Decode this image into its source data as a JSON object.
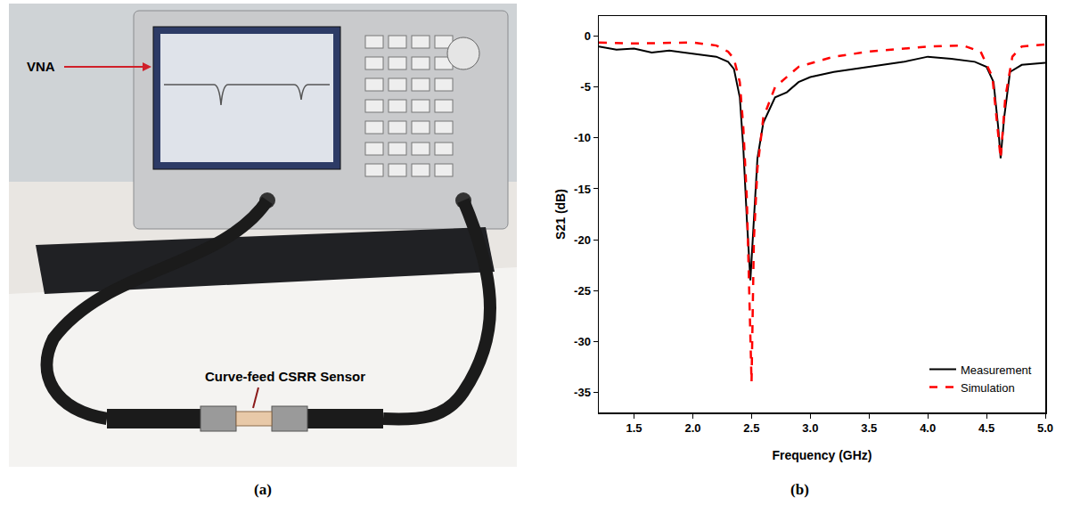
{
  "photo": {
    "labels": [
      "VNA",
      "Curve-feed CSRR Sensor"
    ],
    "caption": "(a)"
  },
  "chart_data": {
    "type": "line",
    "caption": "(b)",
    "x_label": "Frequency (GHz)",
    "y_label": "S21 (dB)",
    "xlim": [
      1.2,
      5.0
    ],
    "xticks": [
      1.5,
      {
        "value": 2.0,
        "label": "2.0"
      },
      2.5,
      {
        "value": 3.0,
        "label": "3.0"
      },
      3.5,
      {
        "value": 4.0,
        "label": "4.0"
      },
      4.5,
      {
        "value": 5.0,
        "label": "5.0"
      }
    ],
    "ylim": [
      -37,
      2
    ],
    "yticks": [
      -35,
      -30,
      -25,
      -20,
      -15,
      -10,
      -5,
      0
    ],
    "grid": false,
    "legend": "lower right",
    "series": [
      {
        "name": "Measurement",
        "color": "#000000",
        "line_style": "solid",
        "x": [
          1.2,
          1.35,
          1.5,
          1.65,
          1.8,
          2.0,
          2.2,
          2.3,
          2.35,
          2.4,
          2.43,
          2.46,
          2.49,
          2.52,
          2.55,
          2.6,
          2.7,
          2.8,
          2.9,
          3.0,
          3.2,
          3.5,
          3.8,
          4.0,
          4.2,
          4.4,
          4.5,
          4.56,
          4.6,
          4.62,
          4.65,
          4.7,
          4.8,
          5.0
        ],
        "values": [
          -1.0,
          -1.3,
          -1.2,
          -1.6,
          -1.4,
          -1.7,
          -2.0,
          -2.5,
          -3.2,
          -6.0,
          -11.0,
          -18.0,
          -24.0,
          -18.0,
          -12.0,
          -8.5,
          -6.0,
          -5.5,
          -4.5,
          -4.0,
          -3.5,
          -3.0,
          -2.5,
          -2.0,
          -2.2,
          -2.5,
          -3.0,
          -4.5,
          -9.0,
          -12.0,
          -8.0,
          -3.5,
          -2.8,
          -2.6
        ]
      },
      {
        "name": "Simulation",
        "color": "#ff0000",
        "line_style": "dash",
        "x": [
          1.2,
          1.5,
          2.0,
          2.2,
          2.3,
          2.35,
          2.4,
          2.43,
          2.46,
          2.48,
          2.5,
          2.52,
          2.55,
          2.6,
          2.7,
          2.9,
          3.2,
          3.5,
          4.0,
          4.3,
          4.45,
          4.55,
          4.6,
          4.62,
          4.66,
          4.72,
          4.8,
          5.0
        ],
        "values": [
          -0.6,
          -0.7,
          -0.6,
          -0.9,
          -1.5,
          -2.2,
          -4.5,
          -9.0,
          -16.0,
          -26.0,
          -34.0,
          -20.0,
          -13.0,
          -8.0,
          -5.0,
          -3.0,
          -2.0,
          -1.5,
          -1.0,
          -0.9,
          -1.5,
          -4.0,
          -10.0,
          -12.0,
          -6.0,
          -2.0,
          -1.0,
          -0.8
        ]
      }
    ]
  }
}
